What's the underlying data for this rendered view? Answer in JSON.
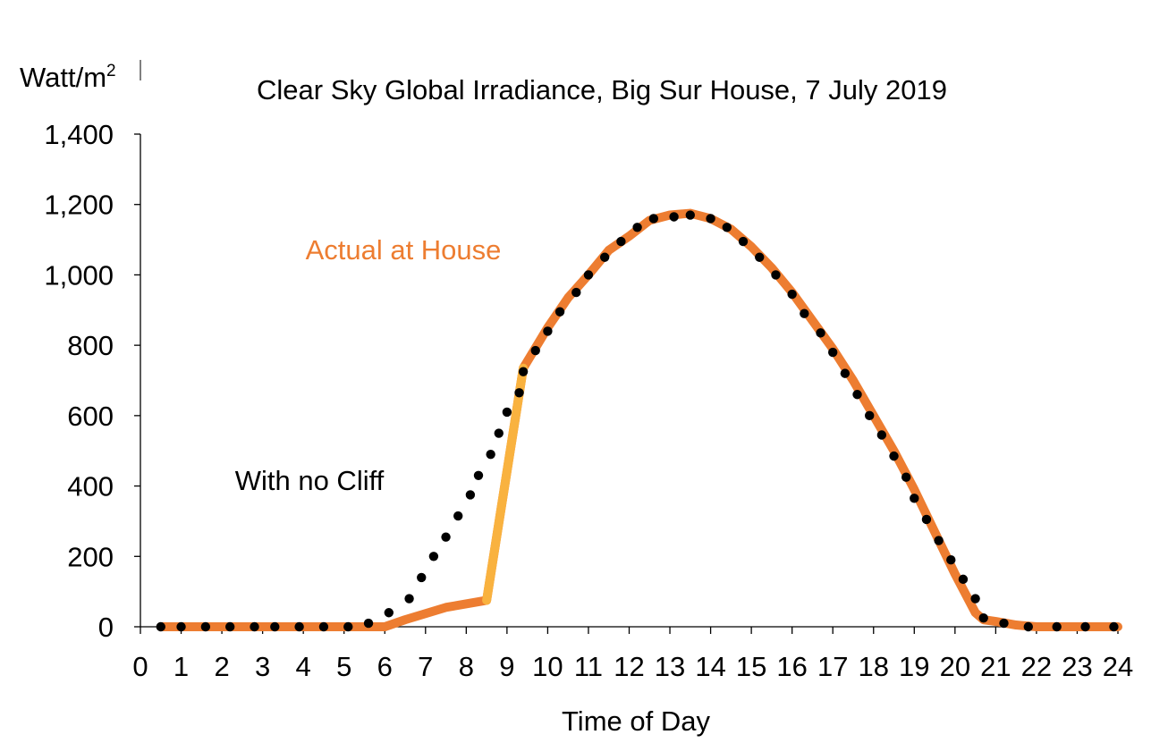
{
  "chart_data": {
    "type": "line",
    "title": "Clear Sky Global Irradiance, Big Sur House, 7 July 2019",
    "xlabel": "Time of Day",
    "ylabel": "Watt/m",
    "ylabel_sup": "2",
    "xlim": [
      0,
      24
    ],
    "ylim": [
      0,
      1400
    ],
    "x_ticks": [
      "0",
      "1",
      "2",
      "3",
      "4",
      "5",
      "6",
      "7",
      "8",
      "9",
      "10",
      "11",
      "12",
      "13",
      "14",
      "15",
      "16",
      "17",
      "18",
      "19",
      "20",
      "21",
      "22",
      "23",
      "24"
    ],
    "y_ticks": [
      "0",
      "200",
      "400",
      "600",
      "800",
      "1,000",
      "1,200",
      "1,400"
    ],
    "y_tick_values": [
      0,
      200,
      400,
      600,
      800,
      1000,
      1200,
      1400
    ],
    "grid": false,
    "annotations": [
      {
        "text": "Actual at House",
        "color": "#ED7D31"
      },
      {
        "text": "With no Cliff",
        "color": "#000000"
      }
    ],
    "series": [
      {
        "name": "Actual at House",
        "color": "#ED7D31",
        "highlight_color": "#F9B23F",
        "style": "solid",
        "points": [
          [
            0.5,
            0
          ],
          [
            1.5,
            0
          ],
          [
            2.5,
            0
          ],
          [
            3.5,
            0
          ],
          [
            4.5,
            0
          ],
          [
            5.5,
            0
          ],
          [
            6.0,
            0
          ],
          [
            6.5,
            20
          ],
          [
            7.5,
            55
          ],
          [
            8.5,
            75
          ],
          [
            9.4,
            735
          ],
          [
            10.0,
            850
          ],
          [
            10.5,
            935
          ],
          [
            11.0,
            1000
          ],
          [
            11.5,
            1070
          ],
          [
            12.0,
            1110
          ],
          [
            12.5,
            1155
          ],
          [
            13.0,
            1170
          ],
          [
            13.5,
            1175
          ],
          [
            14.0,
            1160
          ],
          [
            14.5,
            1130
          ],
          [
            15.0,
            1080
          ],
          [
            15.5,
            1020
          ],
          [
            16.0,
            950
          ],
          [
            16.5,
            870
          ],
          [
            17.0,
            790
          ],
          [
            17.5,
            700
          ],
          [
            18.0,
            600
          ],
          [
            18.5,
            500
          ],
          [
            19.0,
            390
          ],
          [
            19.5,
            270
          ],
          [
            20.0,
            150
          ],
          [
            20.5,
            40
          ],
          [
            20.7,
            20
          ],
          [
            21.0,
            15
          ],
          [
            21.5,
            5
          ],
          [
            22.0,
            0
          ],
          [
            23.0,
            0
          ],
          [
            24.0,
            0
          ]
        ]
      },
      {
        "name": "With no Cliff",
        "color": "#000000",
        "style": "dotted",
        "points": [
          [
            0.5,
            0
          ],
          [
            1.0,
            0
          ],
          [
            1.6,
            0
          ],
          [
            2.2,
            0
          ],
          [
            2.8,
            0
          ],
          [
            3.3,
            0
          ],
          [
            3.9,
            0
          ],
          [
            4.5,
            0
          ],
          [
            5.1,
            0
          ],
          [
            5.6,
            10
          ],
          [
            6.1,
            40
          ],
          [
            6.6,
            80
          ],
          [
            6.9,
            140
          ],
          [
            7.2,
            200
          ],
          [
            7.5,
            255
          ],
          [
            7.8,
            315
          ],
          [
            8.1,
            375
          ],
          [
            8.3,
            430
          ],
          [
            8.6,
            490
          ],
          [
            8.8,
            550
          ],
          [
            9.0,
            610
          ],
          [
            9.3,
            665
          ],
          [
            9.4,
            725
          ],
          [
            9.7,
            785
          ],
          [
            10.0,
            840
          ],
          [
            10.3,
            895
          ],
          [
            10.7,
            950
          ],
          [
            11.0,
            1000
          ],
          [
            11.4,
            1050
          ],
          [
            11.8,
            1095
          ],
          [
            12.2,
            1135
          ],
          [
            12.6,
            1160
          ],
          [
            13.1,
            1165
          ],
          [
            13.5,
            1170
          ],
          [
            14.0,
            1160
          ],
          [
            14.4,
            1135
          ],
          [
            14.8,
            1095
          ],
          [
            15.2,
            1050
          ],
          [
            15.6,
            1000
          ],
          [
            16.0,
            945
          ],
          [
            16.3,
            890
          ],
          [
            16.7,
            835
          ],
          [
            17.0,
            780
          ],
          [
            17.3,
            720
          ],
          [
            17.6,
            660
          ],
          [
            17.9,
            600
          ],
          [
            18.2,
            545
          ],
          [
            18.5,
            485
          ],
          [
            18.8,
            425
          ],
          [
            19.0,
            365
          ],
          [
            19.3,
            305
          ],
          [
            19.6,
            245
          ],
          [
            19.9,
            190
          ],
          [
            20.2,
            135
          ],
          [
            20.5,
            80
          ],
          [
            20.7,
            25
          ],
          [
            21.2,
            10
          ],
          [
            21.8,
            0
          ],
          [
            22.5,
            0
          ],
          [
            23.2,
            0
          ],
          [
            23.9,
            0
          ]
        ]
      }
    ]
  }
}
